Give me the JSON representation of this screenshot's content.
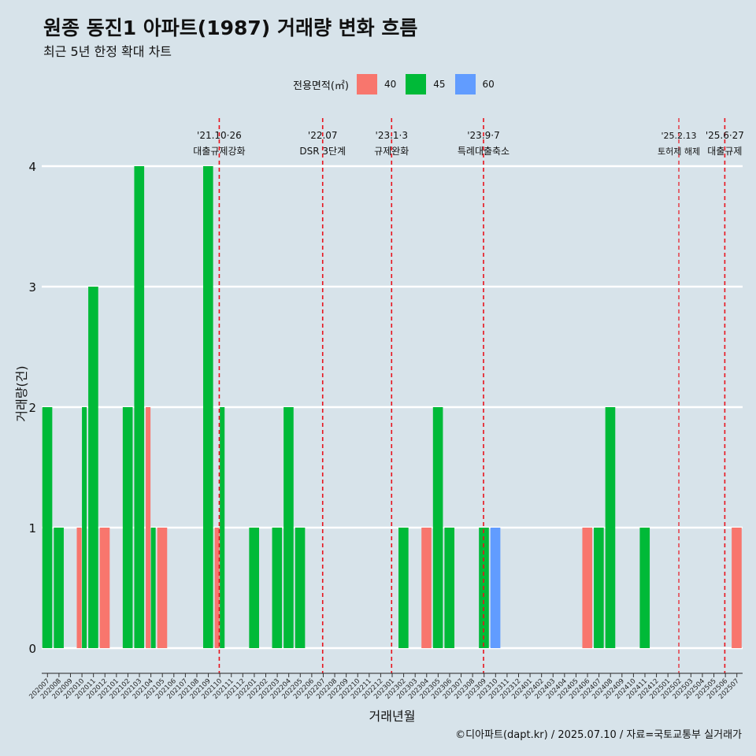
{
  "title": "원종 동진1 아파트(1987) 거래량 변화 흐름",
  "subtitle": "최근 5년 한정 확대 차트",
  "caption": "©디아파트(dapt.kr) / 2025.07.10 / 자료=국토교통부 실거래가",
  "legend": {
    "title": "전용면적(㎡)",
    "items": [
      {
        "label": "40",
        "color": "#f8766d"
      },
      {
        "label": "45",
        "color": "#00ba38"
      },
      {
        "label": "60",
        "color": "#619cff"
      }
    ]
  },
  "chart_data": {
    "type": "bar",
    "xlabel": "거래년월",
    "ylabel": "거래량(건)",
    "ylim": [
      0,
      4
    ],
    "yticks": [
      "0",
      "1",
      "2",
      "3",
      "4"
    ],
    "categories": [
      "202007",
      "202008",
      "202009",
      "202010",
      "202011",
      "202012",
      "202101",
      "202102",
      "202103",
      "202104",
      "202105",
      "202106",
      "202107",
      "202108",
      "202109",
      "202110",
      "202111",
      "202112",
      "202201",
      "202202",
      "202203",
      "202204",
      "202205",
      "202206",
      "202207",
      "202208",
      "202209",
      "202210",
      "202211",
      "202212",
      "202301",
      "202302",
      "202303",
      "202304",
      "202305",
      "202306",
      "202307",
      "202308",
      "202309",
      "202310",
      "202311",
      "202312",
      "202401",
      "202402",
      "202403",
      "202404",
      "202405",
      "202406",
      "202407",
      "202408",
      "202409",
      "202410",
      "202411",
      "202412",
      "202501",
      "202502",
      "202503",
      "202504",
      "202505",
      "202506",
      "202507"
    ],
    "series": [
      {
        "name": "40",
        "color": "#f8766d",
        "values": [
          0,
          0,
          0,
          1,
          0,
          1,
          0,
          0,
          0,
          2,
          1,
          0,
          0,
          0,
          0,
          1,
          0,
          0,
          0,
          0,
          0,
          0,
          0,
          0,
          0,
          0,
          0,
          0,
          0,
          0,
          0,
          0,
          0,
          1,
          0,
          0,
          0,
          0,
          0,
          0,
          0,
          0,
          0,
          0,
          0,
          0,
          0,
          1,
          0,
          0,
          0,
          0,
          0,
          0,
          0,
          0,
          0,
          0,
          0,
          0,
          1
        ]
      },
      {
        "name": "45",
        "color": "#00ba38",
        "values": [
          2,
          1,
          0,
          2,
          3,
          0,
          0,
          2,
          4,
          1,
          0,
          0,
          0,
          0,
          4,
          2,
          0,
          0,
          1,
          0,
          1,
          2,
          1,
          0,
          0,
          0,
          0,
          0,
          0,
          0,
          0,
          1,
          0,
          0,
          2,
          1,
          0,
          0,
          1,
          0,
          0,
          0,
          0,
          0,
          0,
          0,
          0,
          0,
          1,
          2,
          0,
          0,
          1,
          0,
          0,
          0,
          0,
          0,
          0,
          0,
          0
        ]
      },
      {
        "name": "60",
        "color": "#619cff",
        "values": [
          0,
          0,
          0,
          0,
          0,
          0,
          0,
          0,
          0,
          0,
          0,
          0,
          0,
          0,
          0,
          0,
          0,
          0,
          0,
          0,
          0,
          0,
          0,
          0,
          0,
          0,
          0,
          0,
          0,
          0,
          0,
          0,
          0,
          0,
          0,
          0,
          0,
          0,
          0,
          1,
          0,
          0,
          0,
          0,
          0,
          0,
          0,
          0,
          0,
          0,
          0,
          0,
          0,
          0,
          0,
          0,
          0,
          0,
          0,
          0,
          0
        ]
      }
    ],
    "grid": true,
    "legend_position": "top",
    "annotations": [
      {
        "date": "'21.10·26",
        "label": "대출규제강화",
        "x": "202110"
      },
      {
        "date": "'22.07",
        "label": "DSR 3단계",
        "x": "202207"
      },
      {
        "date": "'23.1·3",
        "label": "규제완화",
        "x": "202301"
      },
      {
        "date": "'23.9·7",
        "label": "특례대출축소",
        "x": "202309"
      },
      {
        "date": "'25.2.13",
        "label": "토허제 해제",
        "x": "202502"
      },
      {
        "date": "'25.6·27",
        "label": "대출규제",
        "x": "202506"
      }
    ]
  }
}
